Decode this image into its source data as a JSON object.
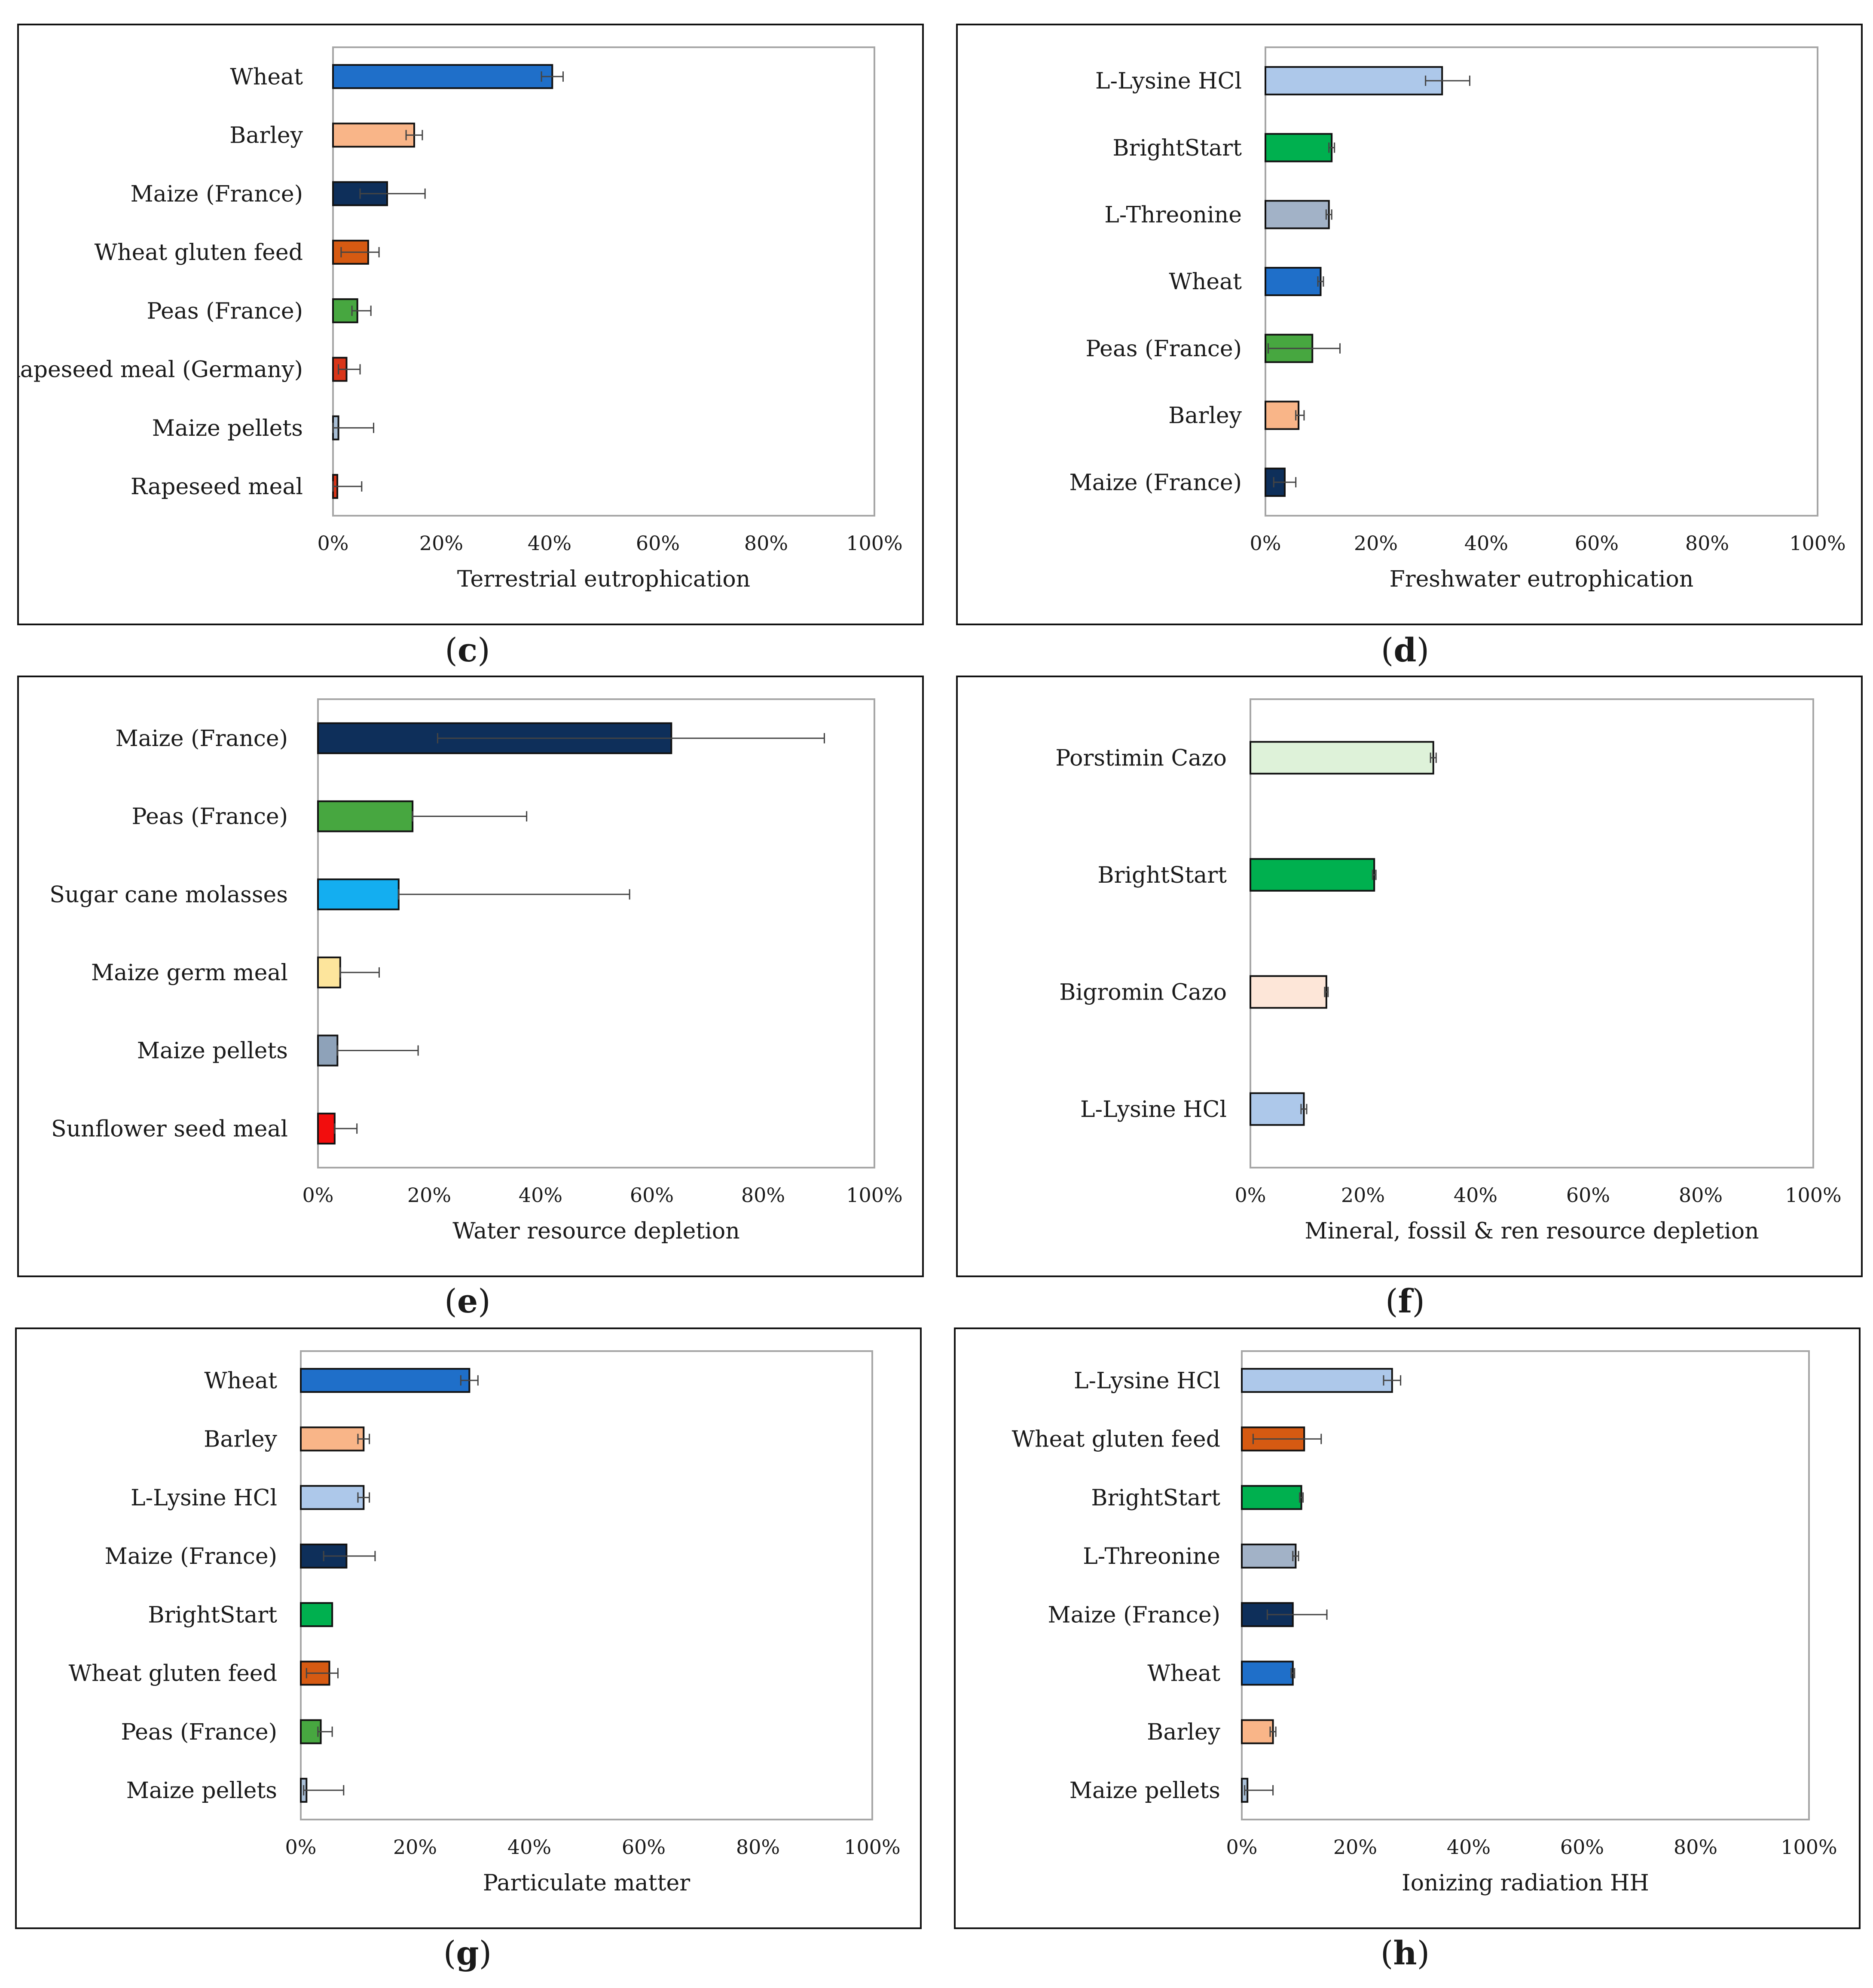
{
  "chart_data": [
    {
      "type": "bar",
      "orientation": "horizontal",
      "panel": "c",
      "xlabel": "Terrestrial eutrophication",
      "xlim": [
        0,
        100
      ],
      "xticks": [
        "0%",
        "20%",
        "40%",
        "60%",
        "80%",
        "100%"
      ],
      "categories": [
        "Wheat",
        "Barley",
        "Maize (France)",
        "Wheat gluten feed",
        "Peas (France)",
        "Rapeseed meal (Germany)",
        "Maize pellets",
        "Rapeseed meal"
      ],
      "values": [
        40.5,
        15,
        10,
        6.5,
        4.5,
        2.5,
        1,
        0.8
      ],
      "error_low": [
        2,
        1.5,
        5,
        5,
        1,
        1.5,
        1,
        0.8
      ],
      "error_high": [
        2,
        1.5,
        7,
        2,
        2.5,
        2.5,
        6.5,
        4.5
      ],
      "colors": [
        "#1f6fc9",
        "#f9b588",
        "#0e2f5a",
        "#d65a12",
        "#47a740",
        "#d9361a",
        "#a9bfd6",
        "#d9361a"
      ]
    },
    {
      "type": "bar",
      "orientation": "horizontal",
      "panel": "d",
      "xlabel": "Freshwater eutrophication",
      "xlim": [
        0,
        100
      ],
      "xticks": [
        "0%",
        "20%",
        "40%",
        "60%",
        "80%",
        "100%"
      ],
      "categories": [
        "L-Lysine HCl",
        "BrightStart",
        "L-Threonine",
        "Wheat",
        "Peas (France)",
        "Barley",
        "Maize (France)"
      ],
      "values": [
        32,
        12,
        11.5,
        10,
        8.5,
        6,
        3.5
      ],
      "error_low": [
        3,
        0.5,
        0.5,
        0.5,
        8,
        0.5,
        2
      ],
      "error_high": [
        5,
        0.5,
        0.5,
        0.5,
        5,
        1,
        2
      ],
      "colors": [
        "#adc8ea",
        "#00b04f",
        "#a2b2c7",
        "#1f6fc9",
        "#47a740",
        "#f9b588",
        "#0e2f5a"
      ]
    },
    {
      "type": "bar",
      "orientation": "horizontal",
      "panel": "e",
      "xlabel": "Water resource depletion",
      "xlim": [
        0,
        100
      ],
      "xticks": [
        "0%",
        "20%",
        "40%",
        "60%",
        "80%",
        "100%"
      ],
      "categories": [
        "Maize (France)",
        "Peas (France)",
        "Sugar cane molasses",
        "Maize germ meal",
        "Maize pellets",
        "Sunflower seed meal"
      ],
      "values": [
        63.5,
        17,
        14.5,
        4,
        3.5,
        3
      ],
      "error_low": [
        42,
        0,
        0,
        0,
        0,
        0
      ],
      "error_high": [
        27.5,
        20.5,
        41.5,
        7,
        14.5,
        4
      ],
      "colors": [
        "#0e2f5a",
        "#47a740",
        "#14aef0",
        "#fde59c",
        "#8ea2b9",
        "#f20d0d"
      ]
    },
    {
      "type": "bar",
      "orientation": "horizontal",
      "panel": "f",
      "xlabel": "Mineral, fossil & ren resource depletion",
      "xlim": [
        0,
        100
      ],
      "xticks": [
        "0%",
        "20%",
        "40%",
        "60%",
        "80%",
        "100%"
      ],
      "categories": [
        "Porstimin Cazo",
        "BrightStart",
        "Bigromin Cazo",
        "L-Lysine HCl"
      ],
      "values": [
        32.5,
        22,
        13.5,
        9.5
      ],
      "error_low": [
        0.5,
        0.3,
        0.3,
        0.5
      ],
      "error_high": [
        0.5,
        0.3,
        0.3,
        0.5
      ],
      "colors": [
        "#def2d9",
        "#00b04f",
        "#fde6d8",
        "#adc8ea"
      ]
    },
    {
      "type": "bar",
      "orientation": "horizontal",
      "panel": "g",
      "xlabel": "Particulate matter",
      "xlim": [
        0,
        100
      ],
      "xticks": [
        "0%",
        "20%",
        "40%",
        "60%",
        "80%",
        "100%"
      ],
      "categories": [
        "Wheat",
        "Barley",
        "L-Lysine HCl",
        "Maize (France)",
        "BrightStart",
        "Wheat gluten feed",
        "Peas (France)",
        "Maize pellets"
      ],
      "values": [
        29.5,
        11,
        11,
        8,
        5.5,
        5,
        3.5,
        1
      ],
      "error_low": [
        1.5,
        1,
        1,
        4,
        0,
        4,
        0.5,
        0.5
      ],
      "error_high": [
        1.5,
        1,
        1,
        5,
        0,
        1.5,
        2,
        6.5
      ],
      "colors": [
        "#1f6fc9",
        "#f9b588",
        "#adc8ea",
        "#0e2f5a",
        "#00b04f",
        "#d65a12",
        "#47a740",
        "#a9bfd6"
      ]
    },
    {
      "type": "bar",
      "orientation": "horizontal",
      "panel": "h",
      "xlabel": "Ionizing radiation HH",
      "xlim": [
        0,
        100
      ],
      "xticks": [
        "0%",
        "20%",
        "40%",
        "60%",
        "80%",
        "100%"
      ],
      "categories": [
        "L-Lysine HCl",
        "Wheat gluten feed",
        "BrightStart",
        "L-Threonine",
        "Maize (France)",
        "Wheat",
        "Barley",
        "Maize pellets"
      ],
      "values": [
        26.5,
        11,
        10.5,
        9.5,
        9,
        9,
        5.5,
        1
      ],
      "error_low": [
        1.5,
        9,
        0.3,
        0.5,
        4.5,
        0.3,
        0.5,
        0.5
      ],
      "error_high": [
        1.5,
        3,
        0.3,
        0.5,
        6,
        0.3,
        0.5,
        4.5
      ],
      "colors": [
        "#adc8ea",
        "#d65a12",
        "#00b04f",
        "#a2b2c7",
        "#0e2f5a",
        "#1f6fc9",
        "#f9b588",
        "#a9bfd6"
      ]
    }
  ]
}
